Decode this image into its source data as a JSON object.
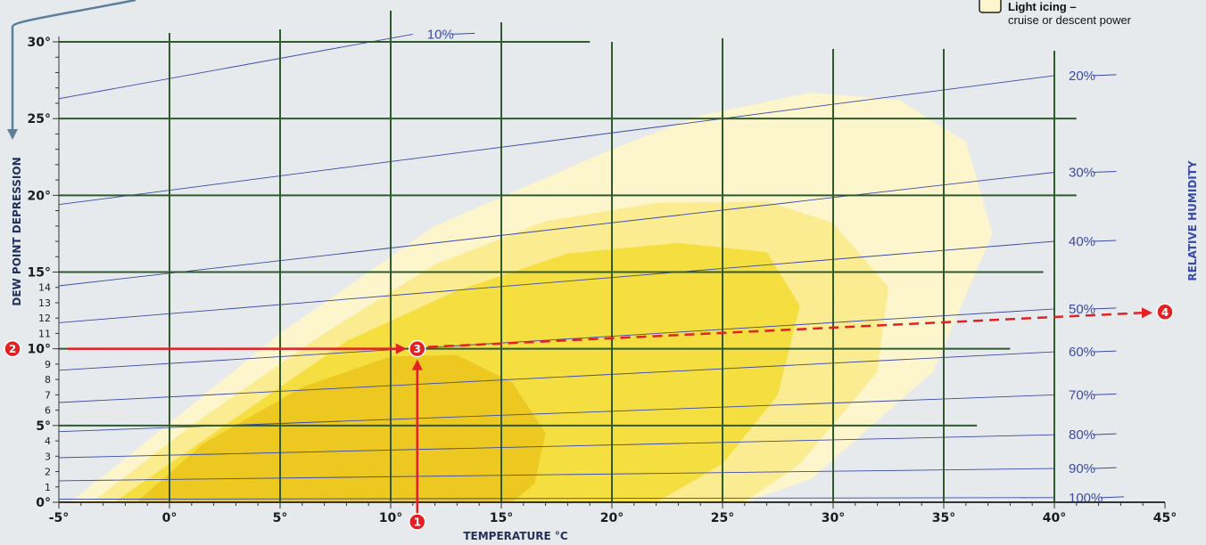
{
  "chart_data": {
    "type": "line",
    "xlabel": "TEMPERATURE °C",
    "ylabel": "DEW POINT DEPRESSION",
    "y2label": "RELATIVE HUMIDITY",
    "xlim": [
      -5,
      45
    ],
    "ylim": [
      0,
      30
    ],
    "x_ticks": [
      {
        "value": -5,
        "label": "-5°"
      },
      {
        "value": 0,
        "label": "0°"
      },
      {
        "value": 5,
        "label": "5°"
      },
      {
        "value": 10,
        "label": "10°"
      },
      {
        "value": 15,
        "label": "15°"
      },
      {
        "value": 20,
        "label": "20°"
      },
      {
        "value": 25,
        "label": "25°"
      },
      {
        "value": 30,
        "label": "30°"
      },
      {
        "value": 35,
        "label": "35°"
      },
      {
        "value": 40,
        "label": "40°"
      },
      {
        "value": 45,
        "label": "45°"
      }
    ],
    "y_ticks_major": [
      {
        "value": 0,
        "label": "0°"
      },
      {
        "value": 5,
        "label": "5°"
      },
      {
        "value": 10,
        "label": "10°"
      },
      {
        "value": 15,
        "label": "15°"
      },
      {
        "value": 20,
        "label": "20°"
      },
      {
        "value": 25,
        "label": "25°"
      },
      {
        "value": 30,
        "label": "30°"
      }
    ],
    "y_ticks_minor": [
      {
        "value": 1,
        "label": "1"
      },
      {
        "value": 2,
        "label": "2"
      },
      {
        "value": 3,
        "label": "3"
      },
      {
        "value": 4,
        "label": "4"
      },
      {
        "value": 6,
        "label": "6"
      },
      {
        "value": 7,
        "label": "7"
      },
      {
        "value": 8,
        "label": "8"
      },
      {
        "value": 9,
        "label": "9"
      },
      {
        "value": 11,
        "label": "11"
      },
      {
        "value": 12,
        "label": "12"
      },
      {
        "value": 13,
        "label": "13"
      },
      {
        "value": 14,
        "label": "14"
      }
    ],
    "grid_vertical_x": [
      0,
      5,
      10,
      15,
      20,
      25,
      30,
      35,
      40
    ],
    "grid_horizontal_y": [
      5,
      10,
      15,
      20,
      25,
      30
    ],
    "relative_humidity_lines": [
      {
        "label": "10%",
        "points": [
          [
            -5,
            26.3
          ],
          [
            11,
            30.5
          ]
        ]
      },
      {
        "label": "20%",
        "points": [
          [
            -5,
            19.4
          ],
          [
            40,
            27.8
          ]
        ]
      },
      {
        "label": "30%",
        "points": [
          [
            -5,
            14.1
          ],
          [
            40,
            21.5
          ]
        ]
      },
      {
        "label": "40%",
        "points": [
          [
            -5,
            11.7
          ],
          [
            40,
            17.0
          ]
        ]
      },
      {
        "label": "50%",
        "points": [
          [
            -5,
            8.6
          ],
          [
            40,
            12.6
          ]
        ]
      },
      {
        "label": "60%",
        "points": [
          [
            -5,
            6.5
          ],
          [
            40,
            9.8
          ]
        ]
      },
      {
        "label": "70%",
        "points": [
          [
            -5,
            4.6
          ],
          [
            40,
            7.0
          ]
        ]
      },
      {
        "label": "80%",
        "points": [
          [
            -5,
            2.9
          ],
          [
            40,
            4.4
          ]
        ]
      },
      {
        "label": "90%",
        "points": [
          [
            -5,
            1.4
          ],
          [
            40,
            2.2
          ]
        ]
      },
      {
        "label": "100%",
        "points": [
          [
            -5,
            0.2
          ],
          [
            40,
            0.3
          ]
        ]
      }
    ],
    "icing_regions": [
      {
        "color": "#fdf5cc",
        "points": [
          [
            -4.5,
            0
          ],
          [
            -1,
            4
          ],
          [
            5,
            11
          ],
          [
            12,
            18
          ],
          [
            20,
            23
          ],
          [
            24,
            25.2
          ],
          [
            29,
            26.7
          ],
          [
            33,
            26.2
          ],
          [
            36,
            23.5
          ],
          [
            37.2,
            17.5
          ],
          [
            34.5,
            8.5
          ],
          [
            29,
            1.5
          ],
          [
            26,
            0
          ]
        ]
      },
      {
        "color": "#fbeb91",
        "points": [
          [
            -3.5,
            0
          ],
          [
            1,
            5
          ],
          [
            7,
            11
          ],
          [
            12,
            15.5
          ],
          [
            17,
            18.3
          ],
          [
            22,
            19.5
          ],
          [
            27,
            19.6
          ],
          [
            30,
            18.2
          ],
          [
            32.5,
            14
          ],
          [
            32,
            8.5
          ],
          [
            28.5,
            2.5
          ],
          [
            26,
            0
          ]
        ]
      },
      {
        "color": "#f5de3f",
        "points": [
          [
            -2.5,
            0
          ],
          [
            2.5,
            5
          ],
          [
            8,
            10.5
          ],
          [
            13,
            13.8
          ],
          [
            18,
            16.2
          ],
          [
            23,
            16.9
          ],
          [
            27,
            16.3
          ],
          [
            28.5,
            12.8
          ],
          [
            27.5,
            7
          ],
          [
            25,
            2.5
          ],
          [
            22,
            0
          ]
        ]
      },
      {
        "color": "#ecc820",
        "points": [
          [
            -1.5,
            0
          ],
          [
            1.5,
            3.8
          ],
          [
            6,
            7.5
          ],
          [
            10,
            9.5
          ],
          [
            13,
            9.6
          ],
          [
            15.5,
            7.8
          ],
          [
            17,
            4.5
          ],
          [
            16.5,
            1.2
          ],
          [
            15.5,
            0
          ]
        ]
      }
    ],
    "example_path": [
      {
        "step": "1",
        "x": 11.2,
        "y": 0
      },
      {
        "step": "2",
        "x": -5,
        "y": 10
      },
      {
        "step": "3",
        "x": 11.2,
        "y": 10
      },
      {
        "step": "4",
        "x": 45,
        "y": 12.4
      }
    ],
    "legend": [
      {
        "title": "Light icing –",
        "text": "cruise or descent power",
        "color": "#fdf5cc"
      }
    ],
    "colors": {
      "grid": "#2e5a2e",
      "humidity": "#3a4aa8",
      "arrow": "#e32024",
      "background": "#e6eaec"
    }
  }
}
